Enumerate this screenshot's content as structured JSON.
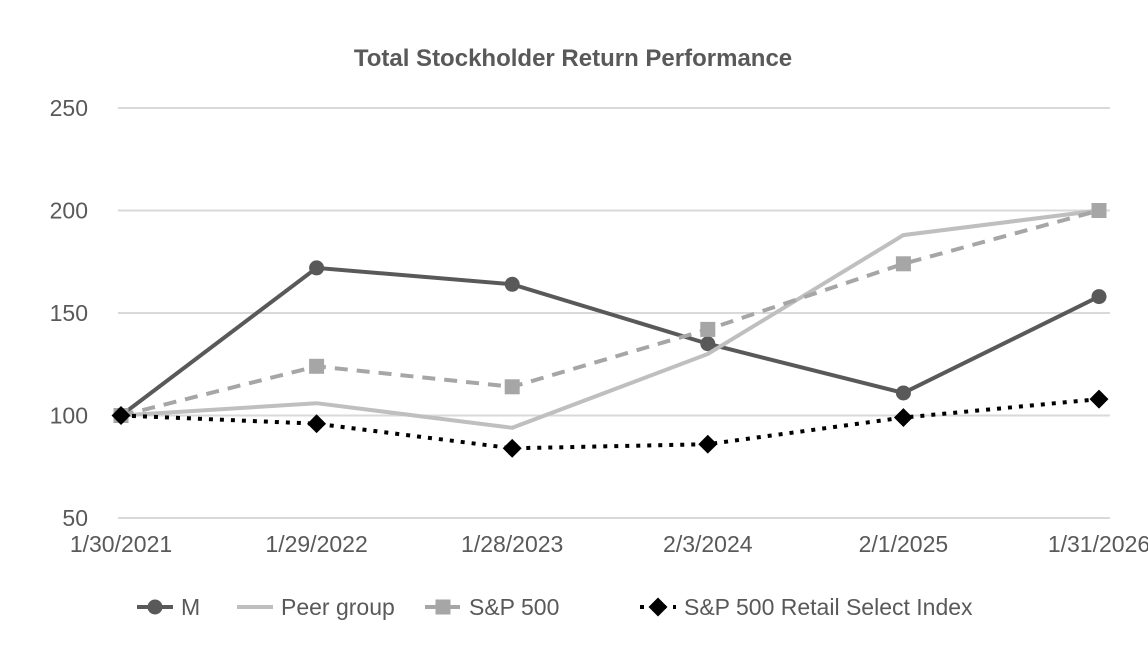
{
  "title": "Total Stockholder Return Performance",
  "chart_data": {
    "type": "line",
    "title": "Total Stockholder Return Performance",
    "x": [
      "1/30/2021",
      "1/29/2022",
      "1/28/2023",
      "2/3/2024",
      "2/1/2025",
      "1/31/2026"
    ],
    "series": [
      {
        "name": "M",
        "values": [
          100,
          172,
          164,
          135,
          111,
          158
        ],
        "color": "#595959",
        "line": "solid",
        "marker": "circle"
      },
      {
        "name": "Peer group",
        "values": [
          100,
          106,
          94,
          130,
          188,
          200
        ],
        "color": "#bfbfbf",
        "line": "solid",
        "marker": "none"
      },
      {
        "name": "S&P 500",
        "values": [
          100,
          124,
          114,
          142,
          174,
          200
        ],
        "color": "#a6a6a6",
        "line": "dashed",
        "marker": "square"
      },
      {
        "name": "S&P 500 Retail Select Index",
        "values": [
          100,
          96,
          84,
          86,
          99,
          108
        ],
        "color": "#000000",
        "line": "dotted",
        "marker": "diamond"
      }
    ],
    "yticks": [
      250,
      200,
      150,
      100,
      50
    ],
    "ylim": [
      50,
      250
    ],
    "xlabel": "",
    "ylabel": "",
    "grid": true,
    "legend_position": "bottom",
    "colors": {
      "grid": "#d9d9d9",
      "text": "#595959",
      "title_text": "#595959",
      "background": "#ffffff"
    }
  }
}
